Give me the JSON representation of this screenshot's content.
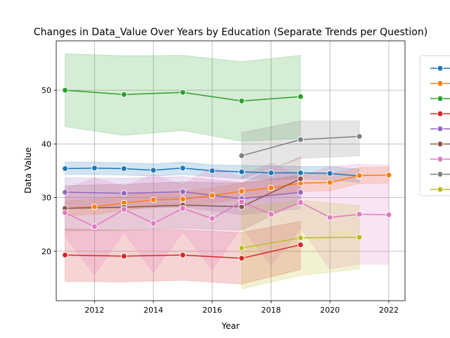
{
  "chart_data": {
    "type": "line",
    "title": "Changes in Data_Value Over Years by Education (Separate Trends per Question)",
    "xlabel": "Year",
    "ylabel": "Data Value",
    "xlim": [
      2010.7,
      2022.55
    ],
    "ylim": [
      10.8,
      59.2
    ],
    "xticks": [
      2012,
      2014,
      2016,
      2018,
      2020,
      2022
    ],
    "yticks": [
      20,
      30,
      40,
      50
    ],
    "grid": true,
    "legend": "right, partially cut off",
    "series": [
      {
        "color": "#1f77b4",
        "x": [
          2011,
          2012,
          2013,
          2014,
          2015,
          2016,
          2017,
          2018,
          2019,
          2020,
          2021
        ],
        "y": [
          35.4,
          35.5,
          35.4,
          35.1,
          35.5,
          35.0,
          34.8,
          34.6,
          34.6,
          34.5,
          34.0
        ],
        "lower": [
          34.3,
          34.3,
          34.2,
          34.0,
          34.3,
          33.9,
          33.5,
          33.4,
          33.5,
          33.3,
          32.8
        ],
        "upper": [
          36.6,
          36.6,
          36.5,
          36.3,
          36.6,
          36.1,
          36.0,
          35.9,
          35.8,
          35.8,
          35.3
        ]
      },
      {
        "color": "#ff7f0e",
        "x": [
          2011,
          2012,
          2013,
          2014,
          2015,
          2016,
          2017,
          2018,
          2019,
          2020,
          2021,
          2022
        ],
        "y": [
          28.0,
          28.3,
          29.0,
          29.6,
          29.7,
          30.4,
          31.2,
          31.8,
          32.7,
          32.8,
          34.1,
          34.2
        ],
        "lower": [
          26.6,
          26.9,
          27.6,
          28.2,
          28.3,
          29.0,
          29.7,
          30.3,
          31.1,
          31.3,
          32.6,
          32.7
        ],
        "upper": [
          29.4,
          29.7,
          30.4,
          31.0,
          31.1,
          31.8,
          32.7,
          33.3,
          34.3,
          34.3,
          35.6,
          35.7
        ]
      },
      {
        "color": "#2ca02c",
        "x": [
          2011,
          2013,
          2015,
          2017,
          2019
        ],
        "y": [
          50.0,
          49.2,
          49.6,
          48.0,
          48.8
        ],
        "lower": [
          43.2,
          41.6,
          42.5,
          40.5,
          41.0
        ],
        "upper": [
          56.8,
          56.4,
          56.5,
          55.3,
          56.5
        ]
      },
      {
        "color": "#d62728",
        "x": [
          2011,
          2013,
          2015,
          2017,
          2019
        ],
        "y": [
          19.3,
          19.1,
          19.3,
          18.7,
          21.2
        ],
        "lower": [
          14.4,
          14.3,
          14.6,
          13.9,
          16.6
        ],
        "upper": [
          24.2,
          23.9,
          24.0,
          23.5,
          25.6
        ]
      },
      {
        "color": "#9467bd",
        "x": [
          2011,
          2013,
          2015,
          2017,
          2019
        ],
        "y": [
          31.0,
          30.8,
          31.1,
          29.8,
          31.0
        ],
        "lower": [
          28.3,
          28.0,
          28.3,
          26.8,
          27.9
        ],
        "upper": [
          33.7,
          33.6,
          33.9,
          32.8,
          34.1
        ]
      },
      {
        "color": "#8c564b",
        "x": [
          2011,
          2013,
          2015,
          2017,
          2019
        ],
        "y": [
          28.0,
          28.2,
          28.6,
          28.3,
          33.5
        ],
        "lower": [
          23.8,
          23.9,
          24.3,
          23.9,
          29.4
        ],
        "upper": [
          32.2,
          32.5,
          32.9,
          32.7,
          37.6
        ]
      },
      {
        "color": "#e377c2",
        "x": [
          2011,
          2012,
          2013,
          2014,
          2015,
          2016,
          2017,
          2018,
          2019,
          2020,
          2021,
          2022
        ],
        "y": [
          27.2,
          24.6,
          27.8,
          25.2,
          28.0,
          26.1,
          29.2,
          26.9,
          29.1,
          26.3,
          26.9,
          26.8
        ],
        "lower": [
          22.8,
          15.6,
          23.5,
          16.0,
          23.6,
          16.6,
          24.5,
          17.3,
          24.3,
          16.8,
          17.6,
          17.6
        ],
        "upper": [
          31.6,
          33.6,
          32.1,
          34.3,
          32.4,
          35.6,
          33.9,
          36.5,
          33.9,
          35.8,
          36.2,
          36.0
        ]
      },
      {
        "color": "#7f7f7f",
        "x": [
          2017,
          2019,
          2021
        ],
        "y": [
          37.8,
          40.8,
          41.4
        ],
        "lower": [
          33.5,
          37.3,
          37.8
        ],
        "upper": [
          42.1,
          44.3,
          44.3
        ]
      },
      {
        "color": "#bcbd22",
        "x": [
          2017,
          2019,
          2021
        ],
        "y": [
          20.6,
          22.5,
          22.6
        ],
        "lower": [
          13.0,
          15.5,
          16.7
        ],
        "upper": [
          28.2,
          29.5,
          28.5
        ]
      }
    ]
  }
}
